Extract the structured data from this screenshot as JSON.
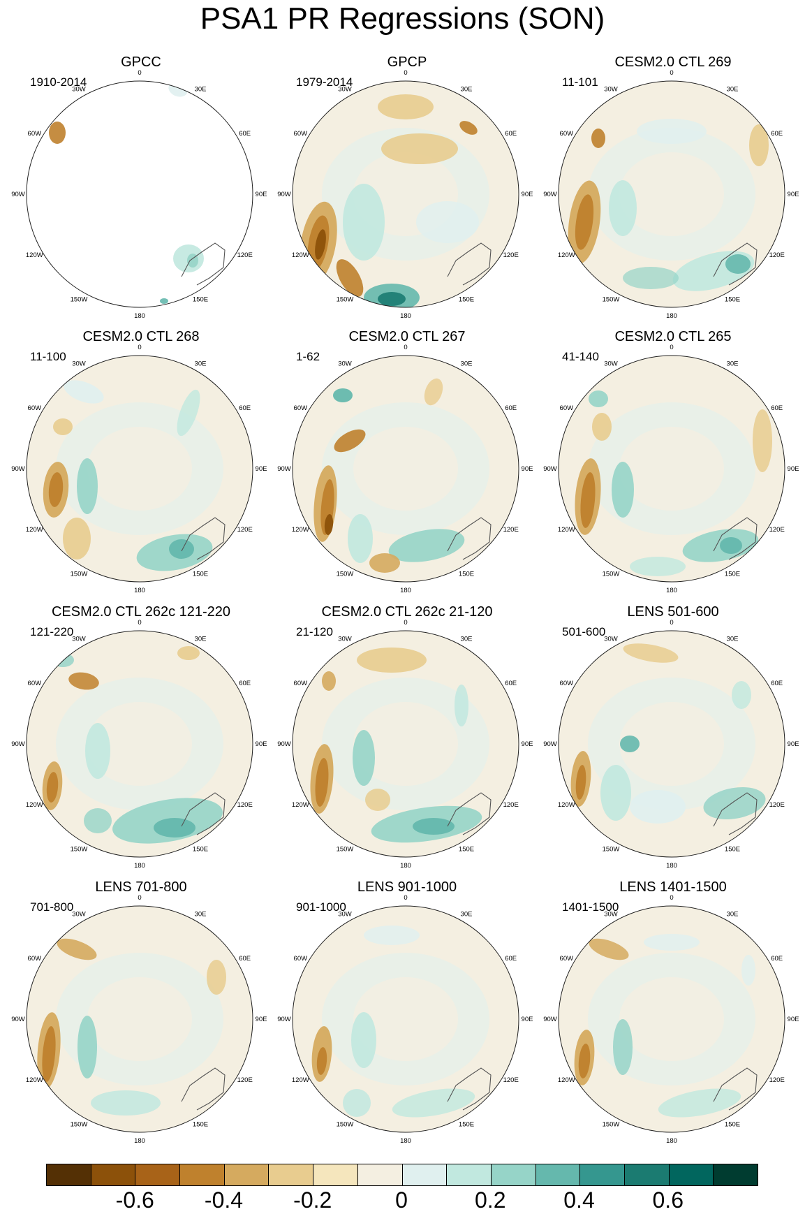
{
  "title": "PSA1 PR Regressions (SON)",
  "panels": [
    {
      "title": "GPCC",
      "years": "1910-2014"
    },
    {
      "title": "GPCP",
      "years": "1979-2014"
    },
    {
      "title": "CESM2.0 CTL 269",
      "years": "11-101"
    },
    {
      "title": "CESM2.0 CTL 268",
      "years": "11-100"
    },
    {
      "title": "CESM2.0 CTL 267",
      "years": "1-62"
    },
    {
      "title": "CESM2.0 CTL 265",
      "years": "41-140"
    },
    {
      "title": "CESM2.0 CTL 262c 121-220",
      "years": "121-220"
    },
    {
      "title": "CESM2.0 CTL 262c 21-120",
      "years": "21-120"
    },
    {
      "title": "LENS 501-600",
      "years": "501-600"
    },
    {
      "title": "LENS 701-800",
      "years": "701-800"
    },
    {
      "title": "LENS 901-1000",
      "years": "901-1000"
    },
    {
      "title": "LENS 1401-1500",
      "years": "1401-1500"
    }
  ],
  "longitude_labels": [
    "0",
    "30E",
    "60E",
    "90E",
    "120E",
    "150E",
    "180",
    "150W",
    "120W",
    "90W",
    "60W",
    "30W"
  ],
  "colorbar": {
    "colors": [
      "#543005",
      "#8c510a",
      "#a86318",
      "#bf812d",
      "#d5aa5f",
      "#e8cc8f",
      "#f5e6bd",
      "#f4efe1",
      "#e0f0ef",
      "#c1e8df",
      "#96d4c8",
      "#65b8ad",
      "#35978f",
      "#1b7b71",
      "#01665e",
      "#003c30"
    ],
    "labels": [
      "-0.6",
      "-0.4",
      "-0.2",
      "0",
      "0.2",
      "0.4",
      "0.6"
    ]
  }
}
